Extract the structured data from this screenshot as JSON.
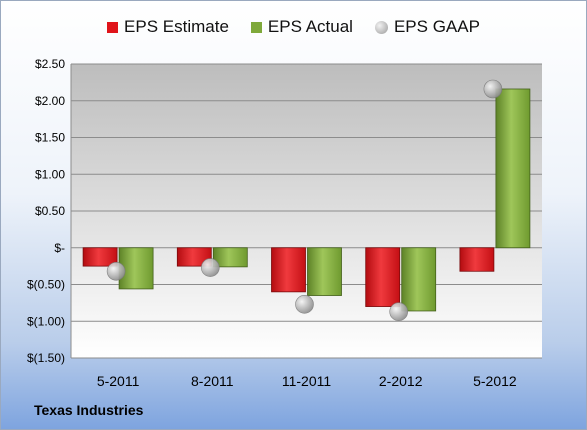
{
  "chart_data": {
    "type": "bar",
    "categories": [
      "5-2011",
      "8-2011",
      "11-2011",
      "2-2012",
      "5-2012"
    ],
    "series": [
      {
        "name": "EPS Estimate",
        "values": [
          -0.25,
          -0.25,
          -0.6,
          -0.8,
          -0.32
        ],
        "color": "#e0141a"
      },
      {
        "name": "EPS Actual",
        "values": [
          -0.56,
          -0.26,
          -0.65,
          -0.86,
          2.16
        ],
        "color": "#7fa93b"
      },
      {
        "name": "EPS GAAP",
        "values": [
          -0.32,
          -0.27,
          -0.77,
          -0.87,
          2.16
        ],
        "color": "#b5b5b5",
        "marker": "circle"
      }
    ],
    "ylim": [
      -1.5,
      2.5
    ],
    "yticks": [
      2.5,
      2.0,
      1.5,
      1.0,
      0.5,
      0,
      -0.5,
      -1.0,
      -1.5
    ],
    "ytick_labels": [
      "$2.50",
      "$2.00",
      "$1.50",
      "$1.00",
      "$0.50",
      "$-",
      "$(0.50)",
      "$(1.00)",
      "$(1.50)"
    ],
    "grid": true,
    "legend": "top-center"
  },
  "footer": {
    "company": "Texas Industries"
  }
}
